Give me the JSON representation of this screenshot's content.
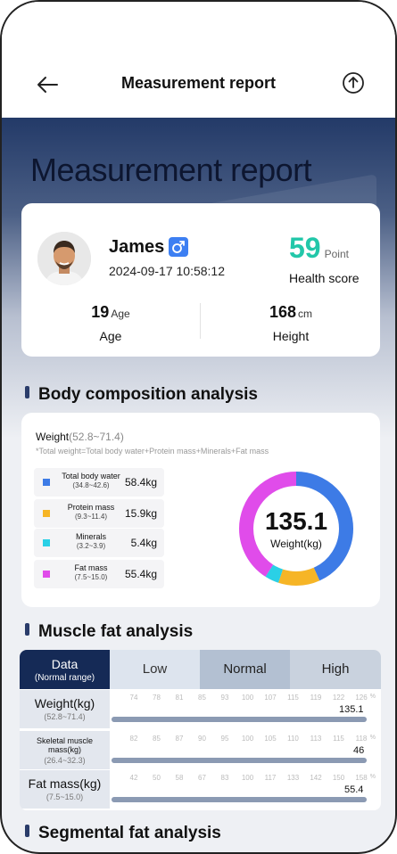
{
  "header": {
    "title": "Measurement report"
  },
  "hero": {
    "title": "Measurement report"
  },
  "profile": {
    "name": "James",
    "datetime": "2024-09-17 10:58:12",
    "score": "59",
    "score_unit": "Point",
    "score_label": "Health score",
    "age": "19",
    "age_unit": "Age",
    "age_label": "Age",
    "height": "168",
    "height_unit": "cm",
    "height_label": "Height"
  },
  "composition": {
    "title": "Body composition analysis",
    "weight_label": "Weight",
    "weight_range": "(52.8~71.4)",
    "note": "*Total weight=Total body water+Protein mass+Minerals+Fat mass",
    "total": "135.1",
    "total_label": "Weight(kg)",
    "items": [
      {
        "name": "Total body water",
        "range": "(34.8~42.6)",
        "value": "58.4kg",
        "amount": 58.4,
        "color": "#3d7be6"
      },
      {
        "name": "Protein mass",
        "range": "(9.3~11.4)",
        "value": "15.9kg",
        "amount": 15.9,
        "color": "#f6b526"
      },
      {
        "name": "Minerals",
        "range": "(3.2~3.9)",
        "value": "5.4kg",
        "amount": 5.4,
        "color": "#2ad0e6"
      },
      {
        "name": "Fat mass",
        "range": "(7.5~15.0)",
        "value": "55.4kg",
        "amount": 55.4,
        "color": "#e04cea"
      }
    ]
  },
  "muscle": {
    "title": "Muscle fat analysis",
    "head": {
      "data": "Data",
      "data_sub": "(Normal range)",
      "low": "Low",
      "normal": "Normal",
      "high": "High"
    },
    "rows": [
      {
        "label": "Weight(kg)",
        "range": "(52.8~71.4)",
        "ticks": [
          "74",
          "78",
          "81",
          "85",
          "93",
          "100",
          "107",
          "115",
          "119",
          "122",
          "126"
        ],
        "pct": "%",
        "value": "135.1",
        "fill": 1.0
      },
      {
        "label": "Skeletal muscle mass(kg)",
        "range": "(26.4~32.3)",
        "ticks": [
          "82",
          "85",
          "87",
          "90",
          "95",
          "100",
          "105",
          "110",
          "113",
          "115",
          "118"
        ],
        "pct": "%",
        "value": "46",
        "fill": 1.0
      },
      {
        "label": "Fat mass(kg)",
        "range": "(7.5~15.0)",
        "ticks": [
          "42",
          "50",
          "58",
          "67",
          "83",
          "100",
          "117",
          "133",
          "142",
          "150",
          "158"
        ],
        "pct": "%",
        "value": "55.4",
        "fill": 1.0
      }
    ]
  },
  "segmental": {
    "title": "Segmental fat analysis"
  }
}
